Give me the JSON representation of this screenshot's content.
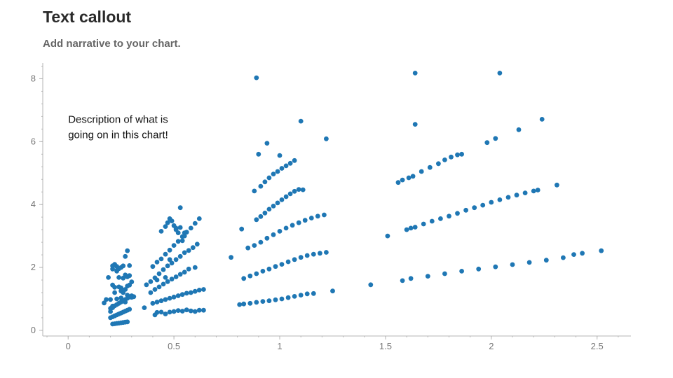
{
  "header": {
    "title": "Text callout",
    "subtitle": "Add narrative to your chart."
  },
  "colors": {
    "point": "#1f77b4",
    "axis": "#b5b5b5",
    "tick_text": "#777777"
  },
  "chart_data": {
    "type": "scatter",
    "title": "Text callout",
    "subtitle": "Add narrative to your chart.",
    "xlabel": "",
    "ylabel": "",
    "xlim": [
      -0.12,
      2.66
    ],
    "ylim": [
      -0.18,
      8.5
    ],
    "x_ticks": [
      0,
      0.5,
      1,
      1.5,
      2,
      2.5
    ],
    "x_tick_labels": [
      "0",
      "0.5",
      "1",
      "1.5",
      "2",
      "2.5"
    ],
    "y_ticks": [
      0,
      2,
      4,
      6,
      8
    ],
    "y_tick_labels": [
      "0",
      "2",
      "4",
      "6",
      "8"
    ],
    "grid": false,
    "annotation": {
      "lines": [
        "Description of what is",
        "going on in this chart!"
      ],
      "x": 0.0,
      "y": 6.6
    },
    "series": [
      {
        "x": [
          0.17,
          0.19,
          0.2,
          0.21,
          0.22,
          0.23,
          0.24,
          0.25,
          0.26,
          0.27,
          0.28,
          0.29,
          0.3,
          0.31,
          0.18,
          0.2,
          0.21,
          0.22,
          0.23,
          0.24,
          0.25,
          0.26,
          0.27,
          0.28,
          0.29,
          0.3,
          0.2,
          0.21,
          0.22,
          0.23,
          0.24,
          0.25,
          0.26,
          0.27,
          0.28,
          0.29,
          0.3,
          0.2,
          0.21,
          0.22,
          0.23,
          0.24,
          0.25,
          0.26,
          0.27,
          0.28,
          0.29,
          0.21,
          0.22,
          0.23,
          0.24,
          0.25,
          0.26,
          0.27,
          0.28,
          0.21,
          0.22,
          0.23,
          0.24,
          0.25,
          0.26,
          0.27,
          0.28,
          0.29,
          0.21,
          0.23,
          0.25,
          0.27,
          0.28,
          0.36,
          0.37,
          0.41,
          0.42,
          0.44,
          0.46,
          0.48,
          0.5,
          0.52,
          0.54,
          0.56,
          0.58,
          0.6,
          0.62,
          0.64,
          0.4,
          0.42,
          0.44,
          0.46,
          0.48,
          0.5,
          0.52,
          0.54,
          0.56,
          0.58,
          0.6,
          0.62,
          0.64,
          0.39,
          0.41,
          0.43,
          0.45,
          0.47,
          0.49,
          0.51,
          0.53,
          0.55,
          0.57,
          0.6,
          0.39,
          0.41,
          0.43,
          0.45,
          0.47,
          0.49,
          0.51,
          0.53,
          0.55,
          0.57,
          0.59,
          0.61,
          0.4,
          0.42,
          0.44,
          0.46,
          0.48,
          0.5,
          0.52,
          0.54,
          0.56,
          0.58,
          0.6,
          0.62,
          0.44,
          0.46,
          0.47,
          0.48,
          0.49,
          0.5,
          0.51,
          0.52,
          0.53,
          0.54,
          0.55,
          0.42,
          0.46,
          0.48,
          0.51,
          0.53,
          0.55,
          0.77,
          0.82,
          0.81,
          0.83,
          0.86,
          0.89,
          0.92,
          0.95,
          0.98,
          1.01,
          1.04,
          1.07,
          1.1,
          1.13,
          1.16,
          1.25,
          0.83,
          0.86,
          0.89,
          0.92,
          0.95,
          0.98,
          1.01,
          1.04,
          1.07,
          1.1,
          1.13,
          1.16,
          1.19,
          1.22,
          0.85,
          0.88,
          0.91,
          0.94,
          0.97,
          1.0,
          1.03,
          1.06,
          1.09,
          1.12,
          1.15,
          1.18,
          1.21,
          0.89,
          0.91,
          0.93,
          0.95,
          0.97,
          0.99,
          1.01,
          1.03,
          1.05,
          1.07,
          1.09,
          1.11,
          0.88,
          0.91,
          0.93,
          0.95,
          0.97,
          0.99,
          1.01,
          1.03,
          1.05,
          1.07,
          0.9,
          0.94,
          1.0,
          1.1,
          1.22,
          0.89,
          1.43,
          1.51,
          1.58,
          1.62,
          1.7,
          1.78,
          1.86,
          1.94,
          2.02,
          2.1,
          2.18,
          2.26,
          2.34,
          2.39,
          2.43,
          2.52,
          1.6,
          1.62,
          1.64,
          1.68,
          1.72,
          1.76,
          1.8,
          1.84,
          1.88,
          1.92,
          1.96,
          2.0,
          2.04,
          2.08,
          2.12,
          2.16,
          2.2,
          2.22,
          2.31,
          1.56,
          1.58,
          1.61,
          1.63,
          1.67,
          1.71,
          1.75,
          1.78,
          1.81,
          1.84,
          1.86,
          1.98,
          2.02,
          2.13,
          2.24,
          1.64,
          2.04,
          1.64
        ],
        "y": [
          0.87,
          1.68,
          0.6,
          1.44,
          1.37,
          1.88,
          1.68,
          1.35,
          1.66,
          1.76,
          1.12,
          1.74,
          1.54,
          1.07,
          0.98,
          0.98,
          0.77,
          1.2,
          1.0,
          1.38,
          1.03,
          1.2,
          0.9,
          1.41,
          1.44,
          1.05,
          0.7,
          0.72,
          0.78,
          0.82,
          0.86,
          0.9,
          0.94,
          0.98,
          1.02,
          1.06,
          1.1,
          0.4,
          0.43,
          0.46,
          0.49,
          0.52,
          0.55,
          0.58,
          0.61,
          0.64,
          0.67,
          0.2,
          0.21,
          0.22,
          0.23,
          0.24,
          0.25,
          0.26,
          0.27,
          1.95,
          2.1,
          2.03,
          1.96,
          2.0,
          2.05,
          2.35,
          2.53,
          2.06,
          2.05,
          1.9,
          1.25,
          1.3,
          1.7,
          0.72,
          1.45,
          0.49,
          0.57,
          0.58,
          0.52,
          0.58,
          0.6,
          0.63,
          0.61,
          0.65,
          0.62,
          0.6,
          0.64,
          0.64,
          0.86,
          0.9,
          0.94,
          0.98,
          1.02,
          1.06,
          1.1,
          1.14,
          1.18,
          1.2,
          1.24,
          1.28,
          1.3,
          1.2,
          1.3,
          1.38,
          1.47,
          1.55,
          1.63,
          1.7,
          1.78,
          1.85,
          1.95,
          2.0,
          1.55,
          1.67,
          1.8,
          1.93,
          2.05,
          2.14,
          2.25,
          2.35,
          2.47,
          2.54,
          2.63,
          2.74,
          2.03,
          2.17,
          2.27,
          2.42,
          2.55,
          2.7,
          2.83,
          2.98,
          3.12,
          3.25,
          3.4,
          3.55,
          3.15,
          3.3,
          3.42,
          3.55,
          3.48,
          3.33,
          3.2,
          3.1,
          3.27,
          2.85,
          3.0,
          1.6,
          1.68,
          2.25,
          3.25,
          3.9,
          3.1,
          2.32,
          3.22,
          0.82,
          0.84,
          0.86,
          0.89,
          0.92,
          0.94,
          0.97,
          1.0,
          1.04,
          1.08,
          1.12,
          1.16,
          1.17,
          1.25,
          1.65,
          1.73,
          1.8,
          1.88,
          1.95,
          2.03,
          2.1,
          2.18,
          2.25,
          2.32,
          2.38,
          2.42,
          2.45,
          2.48,
          2.62,
          2.7,
          2.8,
          2.93,
          3.04,
          3.15,
          3.25,
          3.34,
          3.42,
          3.5,
          3.57,
          3.63,
          3.67,
          3.52,
          3.62,
          3.73,
          3.85,
          3.95,
          4.05,
          4.15,
          4.25,
          4.34,
          4.42,
          4.48,
          4.47,
          4.43,
          4.58,
          4.72,
          4.85,
          4.97,
          5.05,
          5.15,
          5.23,
          5.31,
          5.4,
          5.6,
          5.95,
          5.56,
          6.65,
          6.09,
          8.03,
          1.45,
          3.0,
          1.58,
          1.65,
          1.72,
          1.8,
          1.88,
          1.95,
          2.02,
          2.09,
          2.16,
          2.23,
          2.31,
          2.41,
          2.45,
          2.53,
          3.2,
          3.25,
          3.28,
          3.38,
          3.47,
          3.55,
          3.63,
          3.72,
          3.82,
          3.9,
          3.98,
          4.07,
          4.15,
          4.23,
          4.3,
          4.37,
          4.43,
          4.46,
          4.62,
          4.7,
          4.78,
          4.85,
          4.9,
          5.05,
          5.18,
          5.3,
          5.42,
          5.51,
          5.58,
          5.6,
          5.97,
          6.1,
          6.38,
          6.71,
          6.55,
          8.18,
          8.18
        ]
      }
    ]
  }
}
